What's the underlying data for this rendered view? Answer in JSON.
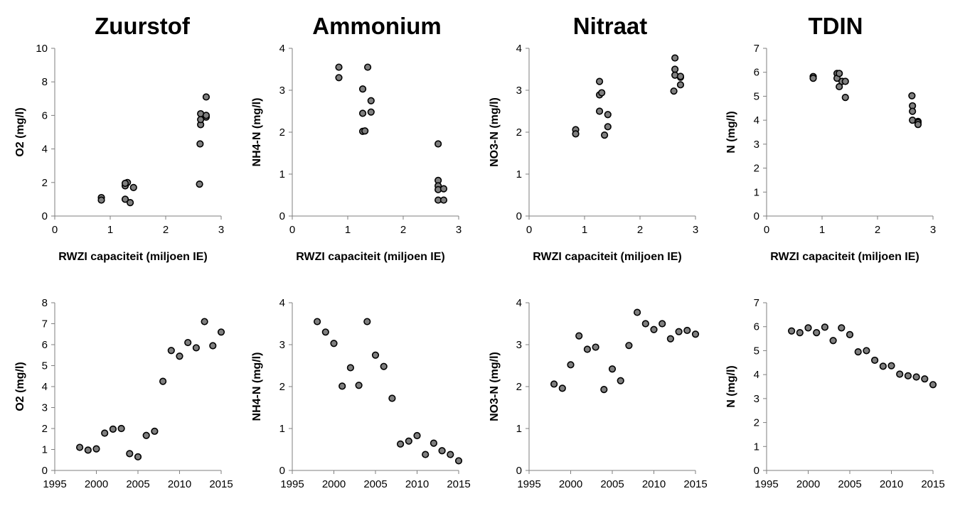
{
  "titles": [
    "Zuurstof",
    "Ammonium",
    "Nitraat",
    "TDIN"
  ],
  "chart_data": [
    {
      "type": "scatter",
      "title": "Zuurstof",
      "xlabel": "RWZI capaciteit (miljoen IE)",
      "ylabel": "O2 (mg/l)",
      "xlim": [
        0,
        3
      ],
      "ylim": [
        0,
        10
      ],
      "xticks": [
        0,
        1,
        2,
        3
      ],
      "yticks": [
        0,
        2,
        4,
        6,
        8,
        10
      ],
      "x": [
        0.84,
        0.84,
        1.27,
        1.27,
        1.31,
        1.27,
        1.36,
        1.42,
        2.61,
        2.62,
        2.63,
        2.63,
        2.63,
        2.73,
        2.73,
        2.73
      ],
      "y": [
        1.1,
        0.95,
        1.0,
        1.8,
        2.0,
        1.95,
        0.8,
        1.7,
        1.9,
        4.3,
        5.45,
        5.75,
        6.1,
        5.9,
        6.0,
        7.1
      ]
    },
    {
      "type": "scatter",
      "title": "Ammonium",
      "xlabel": "RWZI capaciteit (miljoen IE)",
      "ylabel": "NH4-N (mg/l)",
      "xlim": [
        0,
        3
      ],
      "ylim": [
        0,
        4
      ],
      "xticks": [
        0,
        1,
        2,
        3
      ],
      "yticks": [
        0,
        1,
        2,
        3,
        4
      ],
      "x": [
        0.84,
        0.84,
        1.27,
        1.27,
        1.27,
        1.31,
        1.36,
        1.42,
        1.42,
        2.63,
        2.63,
        2.63,
        2.63,
        2.63,
        2.73,
        2.73
      ],
      "y": [
        3.55,
        3.3,
        3.03,
        2.45,
        2.02,
        2.03,
        3.55,
        2.75,
        2.48,
        1.72,
        0.85,
        0.72,
        0.63,
        0.38,
        0.65,
        0.38
      ]
    },
    {
      "type": "scatter",
      "title": "Nitraat",
      "xlabel": "RWZI capaciteit (miljoen IE)",
      "ylabel": "NO3-N (mg/l)",
      "xlim": [
        0,
        3
      ],
      "ylim": [
        0,
        4
      ],
      "xticks": [
        0,
        1,
        2,
        3
      ],
      "yticks": [
        0,
        1,
        2,
        3,
        4
      ],
      "x": [
        0.84,
        0.84,
        1.27,
        1.27,
        1.27,
        1.31,
        1.36,
        1.42,
        1.42,
        2.61,
        2.63,
        2.63,
        2.63,
        2.73,
        2.73,
        2.73
      ],
      "y": [
        2.06,
        1.96,
        3.21,
        2.89,
        2.5,
        2.94,
        1.93,
        2.42,
        2.13,
        2.98,
        3.77,
        3.5,
        3.36,
        3.31,
        3.33,
        3.13
      ]
    },
    {
      "type": "scatter",
      "title": "TDIN",
      "xlabel": "RWZI capaciteit (miljoen IE)",
      "ylabel": "N (mg/l)",
      "xlim": [
        0,
        3
      ],
      "ylim": [
        0,
        7
      ],
      "xticks": [
        0,
        1,
        2,
        3
      ],
      "yticks": [
        0,
        1,
        2,
        3,
        4,
        5,
        6,
        7
      ],
      "x": [
        0.84,
        0.84,
        1.27,
        1.27,
        1.31,
        1.31,
        1.36,
        1.42,
        1.42,
        2.62,
        2.63,
        2.63,
        2.63,
        2.73,
        2.73,
        2.73
      ],
      "y": [
        5.82,
        5.75,
        5.95,
        5.75,
        5.4,
        5.95,
        5.62,
        4.95,
        5.62,
        5.02,
        4.6,
        4.37,
        4.0,
        3.95,
        3.9,
        3.82
      ]
    },
    {
      "type": "scatter",
      "xlabel": "",
      "ylabel": "O2 (mg/l)",
      "xlim": [
        1995,
        2015
      ],
      "ylim": [
        0,
        8
      ],
      "xticks": [
        1995,
        2000,
        2005,
        2010,
        2015
      ],
      "yticks": [
        0,
        1,
        2,
        3,
        4,
        5,
        6,
        7,
        8
      ],
      "x": [
        1998,
        1999,
        2000,
        2001,
        2002,
        2003,
        2004,
        2005,
        2006,
        2007,
        2008,
        2009,
        2010,
        2011,
        2012,
        2013,
        2014,
        2015
      ],
      "y": [
        1.1,
        0.97,
        1.03,
        1.78,
        1.97,
        2.0,
        0.8,
        0.65,
        1.67,
        1.87,
        4.25,
        5.72,
        5.45,
        6.1,
        5.85,
        7.1,
        5.95,
        6.6
      ]
    },
    {
      "type": "scatter",
      "xlabel": "",
      "ylabel": "NH4-N (mg/l)",
      "xlim": [
        1995,
        2015
      ],
      "ylim": [
        0,
        4
      ],
      "xticks": [
        1995,
        2000,
        2005,
        2010,
        2015
      ],
      "yticks": [
        0,
        1,
        2,
        3,
        4
      ],
      "x": [
        1998,
        1999,
        2000,
        2001,
        2002,
        2003,
        2004,
        2005,
        2006,
        2007,
        2008,
        2009,
        2010,
        2011,
        2012,
        2013,
        2014,
        2015
      ],
      "y": [
        3.55,
        3.3,
        3.03,
        2.01,
        2.45,
        2.03,
        3.55,
        2.75,
        2.48,
        1.72,
        0.63,
        0.7,
        0.83,
        0.38,
        0.65,
        0.47,
        0.38,
        0.23
      ]
    },
    {
      "type": "scatter",
      "xlabel": "",
      "ylabel": "NO3-N (mg/l)",
      "xlim": [
        1995,
        2015
      ],
      "ylim": [
        0,
        4
      ],
      "xticks": [
        1995,
        2000,
        2005,
        2010,
        2015
      ],
      "yticks": [
        0,
        1,
        2,
        3,
        4
      ],
      "x": [
        1998,
        1999,
        2000,
        2001,
        2002,
        2003,
        2004,
        2005,
        2006,
        2007,
        2008,
        2009,
        2010,
        2011,
        2012,
        2013,
        2014,
        2015
      ],
      "y": [
        2.06,
        1.96,
        2.52,
        3.21,
        2.89,
        2.94,
        1.93,
        2.42,
        2.14,
        2.98,
        3.77,
        3.5,
        3.36,
        3.5,
        3.14,
        3.31,
        3.34,
        3.25
      ]
    },
    {
      "type": "scatter",
      "xlabel": "",
      "ylabel": "N (mg/l)",
      "xlim": [
        1995,
        2015
      ],
      "ylim": [
        0,
        7
      ],
      "xticks": [
        1995,
        2000,
        2005,
        2010,
        2015
      ],
      "yticks": [
        0,
        1,
        2,
        3,
        4,
        5,
        6,
        7
      ],
      "x": [
        1998,
        1999,
        2000,
        2001,
        2002,
        2003,
        2004,
        2005,
        2006,
        2007,
        2008,
        2009,
        2010,
        2011,
        2012,
        2013,
        2014,
        2015
      ],
      "y": [
        5.82,
        5.75,
        5.95,
        5.75,
        5.98,
        5.42,
        5.95,
        5.67,
        4.95,
        5.0,
        4.6,
        4.35,
        4.37,
        4.02,
        3.95,
        3.9,
        3.82,
        3.58
      ]
    }
  ]
}
